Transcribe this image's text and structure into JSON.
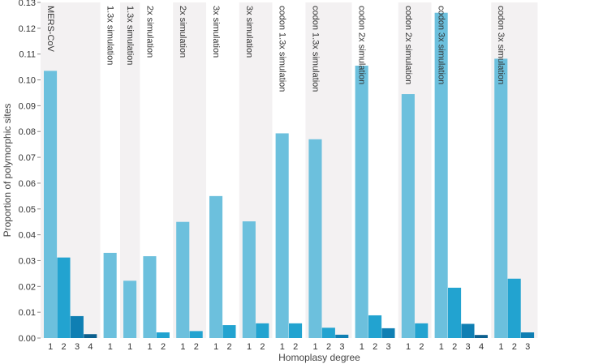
{
  "chart_data": {
    "type": "bar",
    "title": "",
    "xlabel": "Homoplasy degree",
    "ylabel": "Proportion of polymorphic sites",
    "ylim": [
      0,
      0.13
    ],
    "yticks": [
      0.0,
      0.01,
      0.02,
      0.03,
      0.04,
      0.05,
      0.06,
      0.07,
      0.08,
      0.09,
      0.1,
      0.11,
      0.12,
      0.13
    ],
    "ytick_labels": [
      "0.00",
      "0.01",
      "0.02",
      "0.03",
      "0.04",
      "0.05",
      "0.06",
      "0.07",
      "0.08",
      "0.09",
      "0.10",
      "0.11",
      "0.12",
      "0.13"
    ],
    "series_colors": {
      "1": "#6cc0dd",
      "2": "#22a3d0",
      "3": "#0f7fb3",
      "4": "#0b5f8e"
    },
    "panel_colors": [
      "#f3f1f2",
      "#ffffff"
    ],
    "panels": [
      {
        "label": "MERS-CoV",
        "categories": [
          "1",
          "2",
          "3",
          "4"
        ],
        "values": [
          0.1035,
          0.0312,
          0.0085,
          0.0015
        ]
      },
      {
        "label": "1.3x simulation",
        "categories": [
          "1"
        ],
        "values": [
          0.033
        ]
      },
      {
        "label": "1.3x simulation",
        "categories": [
          "1"
        ],
        "values": [
          0.0222
        ]
      },
      {
        "label": "2x simulation",
        "categories": [
          "1",
          "2"
        ],
        "values": [
          0.0317,
          0.0022
        ]
      },
      {
        "label": "2x simulation",
        "categories": [
          "1",
          "2"
        ],
        "values": [
          0.045,
          0.0027
        ]
      },
      {
        "label": "3x simulation",
        "categories": [
          "1",
          "2"
        ],
        "values": [
          0.055,
          0.005
        ]
      },
      {
        "label": "3x simulation",
        "categories": [
          "1",
          "2"
        ],
        "values": [
          0.0452,
          0.0057
        ]
      },
      {
        "label": "codon 1.3x simulation",
        "categories": [
          "1",
          "2"
        ],
        "values": [
          0.0793,
          0.0057
        ]
      },
      {
        "label": "codon 1.3x simulation",
        "categories": [
          "1",
          "2",
          "3"
        ],
        "values": [
          0.077,
          0.004,
          0.0013
        ]
      },
      {
        "label": "codon 2x simulation",
        "categories": [
          "1",
          "2",
          "3"
        ],
        "values": [
          0.1055,
          0.0088,
          0.0038
        ]
      },
      {
        "label": "codon 2x simulation",
        "categories": [
          "1",
          "2"
        ],
        "values": [
          0.0945,
          0.0057
        ]
      },
      {
        "label": "codon 3x simulation",
        "categories": [
          "1",
          "2",
          "3",
          "4"
        ],
        "values": [
          0.126,
          0.0195,
          0.0055,
          0.0012
        ]
      },
      {
        "label": "codon 3x simulation",
        "categories": [
          "1",
          "2",
          "3"
        ],
        "values": [
          0.1082,
          0.023,
          0.0022
        ]
      }
    ]
  }
}
